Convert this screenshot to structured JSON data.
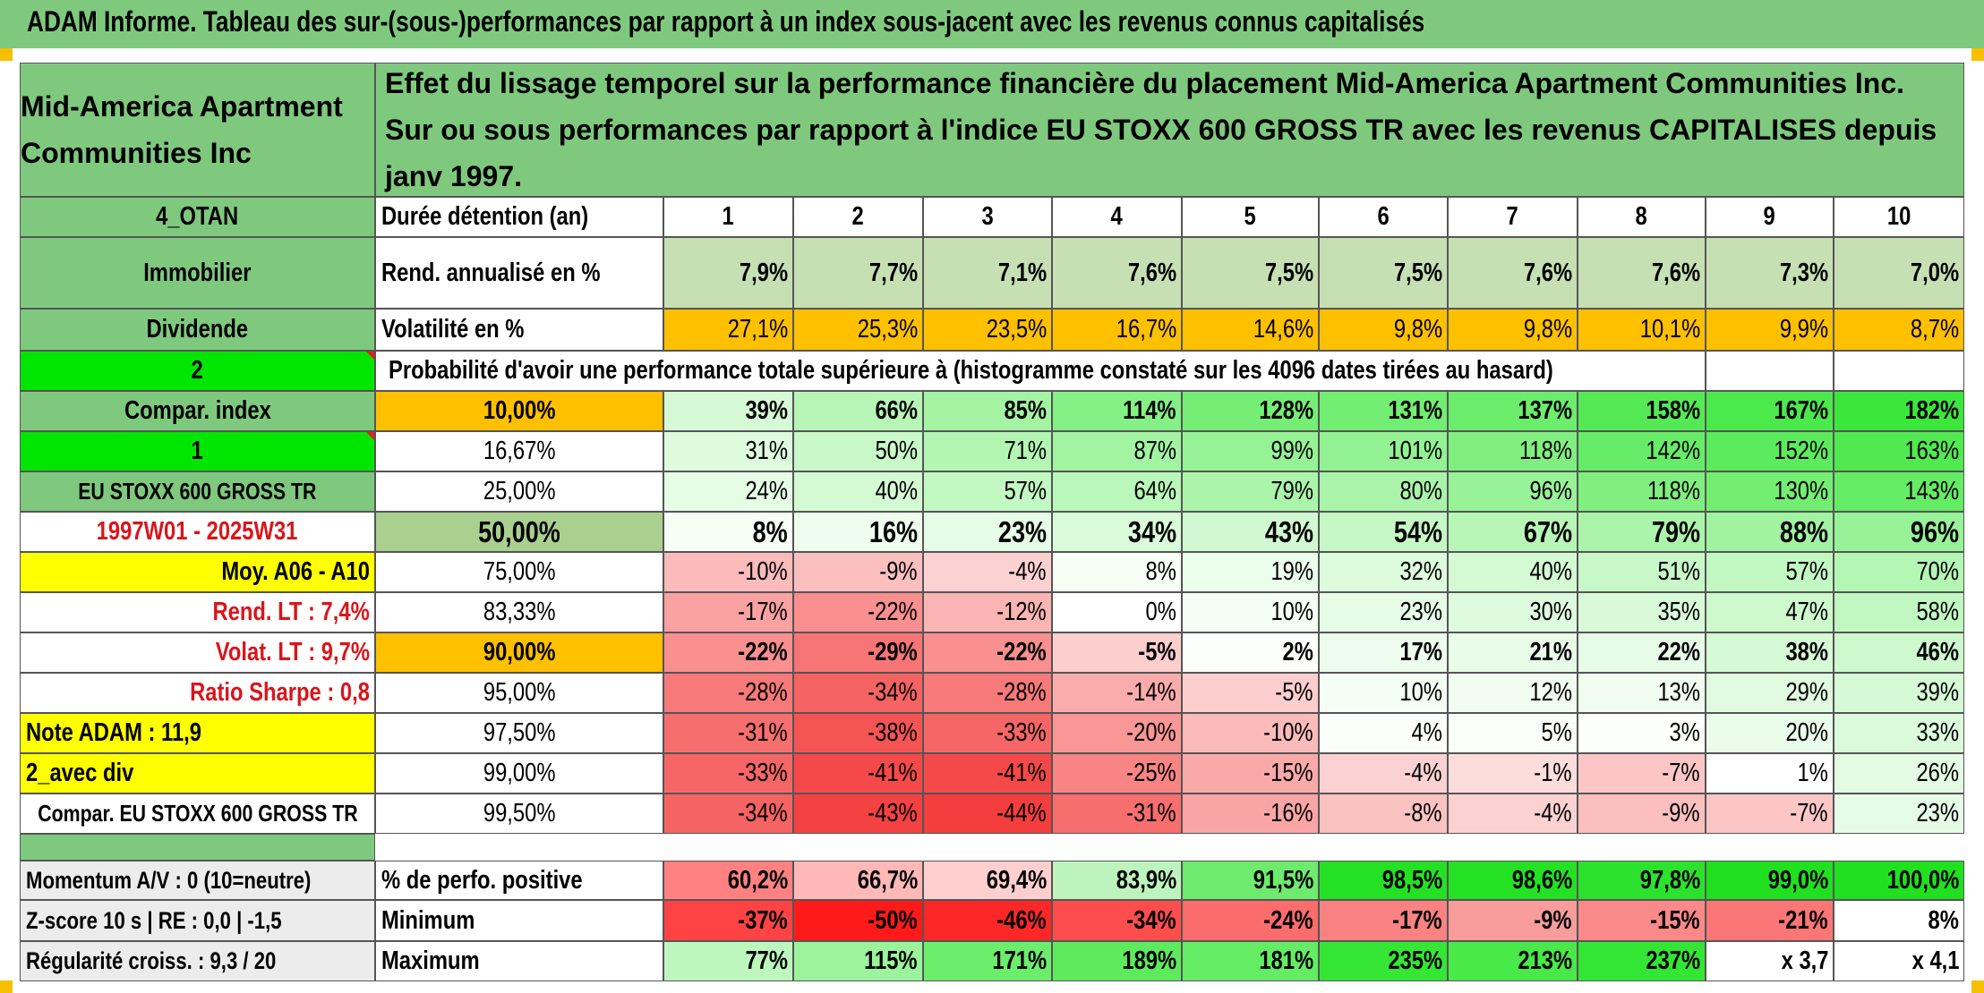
{
  "banner": "ADAM Informe. Tableau des sur-(sous-)performances par rapport à un index sous-jacent avec les revenus connus capitalisés",
  "company": "Mid-America Apartment Communities Inc",
  "headline": "Effet du lissage temporel sur la performance financière du placement Mid-America Apartment Communities Inc. Sur ou sous performances par rapport à l'indice EU STOXX 600 GROSS TR avec les revenus CAPITALISES depuis janv 1997.",
  "left_panel": {
    "code": "4_OTAN",
    "sector": "Immobilier",
    "type": "Dividende",
    "selector_2": "2",
    "compar_index": "Compar. index",
    "selector_1": "1",
    "index_name": "EU STOXX 600 GROSS TR",
    "period": "1997W01 - 2025W31",
    "moy": "Moy. A06 - A10",
    "rend_lt": "Rend. LT :   7,4%",
    "volat_lt": "Volat. LT :   9,7%",
    "sharpe": "Ratio Sharpe :   0,8",
    "note": "Note ADAM : 11,9",
    "variant": "2_avec div",
    "compar_full": "Compar. EU STOXX 600 GROSS TR",
    "momentum": "Momentum A/V : 0 (10=neutre)",
    "zscore": "Z-score 10 s | RE : 0,0 | -1,5",
    "regularite": "Régularité croiss. : 9,3 / 20"
  },
  "labels": {
    "duree": "Durée détention (an)",
    "rend": "Rend. annualisé en %",
    "vol": "Volatilité en %",
    "prob": "Probabilité d'avoir une performance totale supérieure à (histogramme constaté sur les 4096 dates tirées au hasard)",
    "pct_pos": "% de perfo. positive",
    "min": "Minimum",
    "max": "Maximum"
  },
  "years": [
    "1",
    "2",
    "3",
    "4",
    "5",
    "6",
    "7",
    "8",
    "9",
    "10"
  ],
  "rend_values": [
    "7,9%",
    "7,7%",
    "7,1%",
    "7,6%",
    "7,5%",
    "7,5%",
    "7,6%",
    "7,6%",
    "7,3%",
    "7,0%"
  ],
  "vol_values": [
    "27,1%",
    "25,3%",
    "23,5%",
    "16,7%",
    "14,6%",
    "9,8%",
    "9,8%",
    "10,1%",
    "9,9%",
    "8,7%"
  ],
  "prob_rows": [
    {
      "pct": "10,00%",
      "values": [
        "39%",
        "66%",
        "85%",
        "114%",
        "128%",
        "131%",
        "137%",
        "158%",
        "167%",
        "182%"
      ]
    },
    {
      "pct": "16,67%",
      "values": [
        "31%",
        "50%",
        "71%",
        "87%",
        "99%",
        "101%",
        "118%",
        "142%",
        "152%",
        "163%"
      ]
    },
    {
      "pct": "25,00%",
      "values": [
        "24%",
        "40%",
        "57%",
        "64%",
        "79%",
        "80%",
        "96%",
        "118%",
        "130%",
        "143%"
      ]
    },
    {
      "pct": "50,00%",
      "values": [
        "8%",
        "16%",
        "23%",
        "34%",
        "43%",
        "54%",
        "67%",
        "79%",
        "88%",
        "96%"
      ]
    },
    {
      "pct": "75,00%",
      "values": [
        "-10%",
        "-9%",
        "-4%",
        "8%",
        "19%",
        "32%",
        "40%",
        "51%",
        "57%",
        "70%"
      ]
    },
    {
      "pct": "83,33%",
      "values": [
        "-17%",
        "-22%",
        "-12%",
        "0%",
        "10%",
        "23%",
        "30%",
        "35%",
        "47%",
        "58%"
      ]
    },
    {
      "pct": "90,00%",
      "values": [
        "-22%",
        "-29%",
        "-22%",
        "-5%",
        "2%",
        "17%",
        "21%",
        "22%",
        "38%",
        "46%"
      ]
    },
    {
      "pct": "95,00%",
      "values": [
        "-28%",
        "-34%",
        "-28%",
        "-14%",
        "-5%",
        "10%",
        "12%",
        "13%",
        "29%",
        "39%"
      ]
    },
    {
      "pct": "97,50%",
      "values": [
        "-31%",
        "-38%",
        "-33%",
        "-20%",
        "-10%",
        "4%",
        "5%",
        "3%",
        "20%",
        "33%"
      ]
    },
    {
      "pct": "99,00%",
      "values": [
        "-33%",
        "-41%",
        "-41%",
        "-25%",
        "-15%",
        "-4%",
        "-1%",
        "-7%",
        "1%",
        "26%"
      ]
    },
    {
      "pct": "99,50%",
      "values": [
        "-34%",
        "-43%",
        "-44%",
        "-31%",
        "-16%",
        "-8%",
        "-4%",
        "-9%",
        "-7%",
        "23%"
      ]
    }
  ],
  "pct_pos_values": [
    "60,2%",
    "66,7%",
    "69,4%",
    "83,9%",
    "91,5%",
    "98,5%",
    "98,6%",
    "97,8%",
    "99,0%",
    "100,0%"
  ],
  "min_values": [
    "-37%",
    "-50%",
    "-46%",
    "-34%",
    "-24%",
    "-17%",
    "-9%",
    "-15%",
    "-21%",
    "8%"
  ],
  "max_values": [
    "77%",
    "115%",
    "171%",
    "189%",
    "181%",
    "235%",
    "213%",
    "237%",
    "x 3,7",
    "x 4,1"
  ],
  "colors": {
    "banner_green": "#7fc97f",
    "header_green": "#7fc97f",
    "bright_green": "#00e600",
    "yellow": "#ffff00",
    "orange": "#ffc000",
    "rend_band": "#c6e0b4",
    "red_text": "#d9151b"
  }
}
